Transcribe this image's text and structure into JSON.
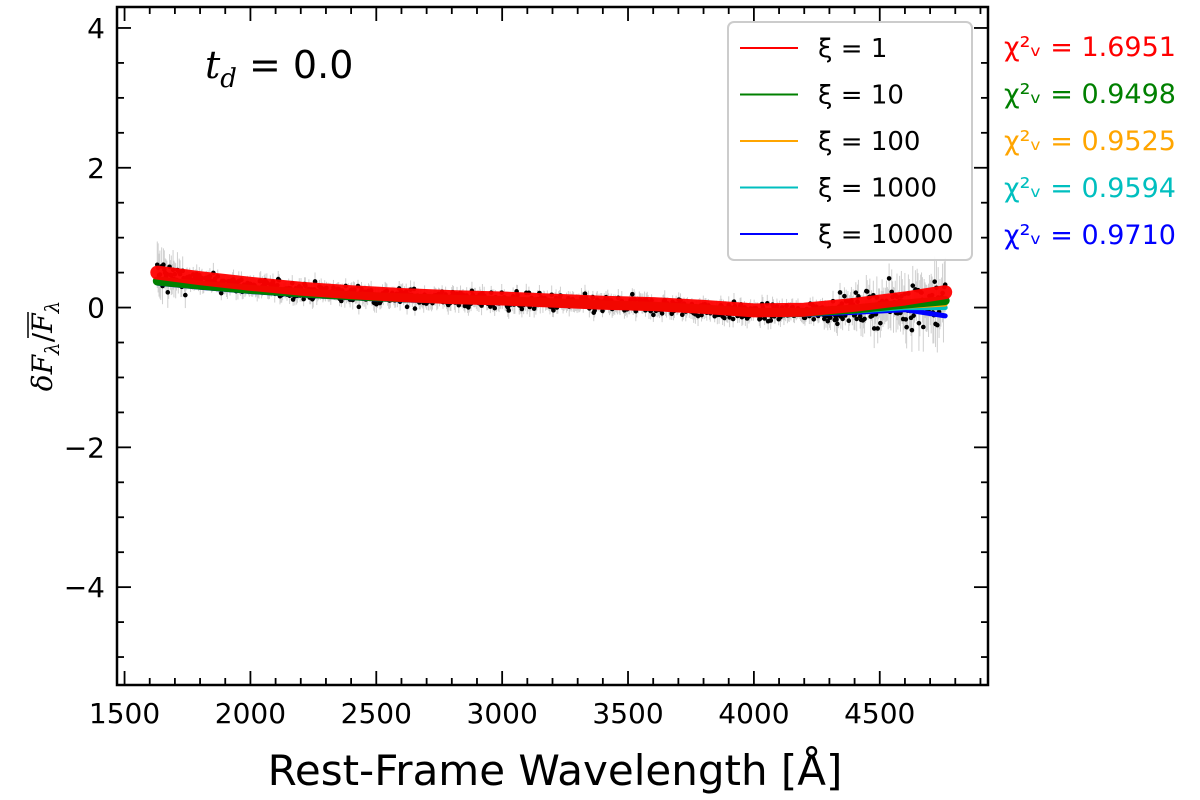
{
  "chart_data": {
    "type": "line",
    "xlabel": "Rest-Frame Wavelength [Å]",
    "ylabel": "δF_λ / F̄_λ",
    "xlim": [
      1470,
      4930
    ],
    "ylim": [
      -5.4,
      4.3
    ],
    "xticks": [
      1500,
      2000,
      2500,
      3000,
      3500,
      4000,
      4500
    ],
    "xtick_labels": [
      "1500",
      "2000",
      "2500",
      "3000",
      "3500",
      "4000",
      "4500"
    ],
    "yticks": [
      4,
      2,
      0,
      -2,
      -4
    ],
    "ytick_labels": [
      "4",
      "2",
      "0",
      "−2",
      "−4"
    ],
    "annotation": {
      "symbol": "t",
      "subscript": "d",
      "text": " = 0.0"
    },
    "legend_position": "top-right",
    "x": [
      1630,
      1800,
      2000,
      2200,
      2400,
      2600,
      2800,
      3000,
      3200,
      3400,
      3600,
      3800,
      4000,
      4200,
      4400,
      4600,
      4760
    ],
    "observed_points": [
      0.45,
      0.38,
      0.3,
      0.24,
      0.19,
      0.15,
      0.12,
      0.1,
      0.07,
      0.04,
      0.02,
      -0.02,
      -0.08,
      -0.07,
      -0.02,
      0.05,
      0.1
    ],
    "series": [
      {
        "name": "ξ = 1",
        "chi_label": "χ²ᵥ = 1.6951",
        "color": "#ff0000",
        "values": [
          0.5,
          0.42,
          0.34,
          0.27,
          0.22,
          0.18,
          0.15,
          0.13,
          0.1,
          0.07,
          0.05,
          0.01,
          -0.04,
          -0.03,
          0.04,
          0.13,
          0.22
        ]
      },
      {
        "name": "ξ = 10",
        "chi_label": "χ²ᵥ = 0.9498",
        "color": "#008000",
        "values": [
          0.38,
          0.32,
          0.26,
          0.21,
          0.17,
          0.14,
          0.12,
          0.1,
          0.07,
          0.04,
          0.02,
          -0.02,
          -0.07,
          -0.07,
          -0.02,
          0.05,
          0.1
        ]
      },
      {
        "name": "ξ = 100",
        "chi_label": "χ²ᵥ = 0.9525",
        "color": "#ffa500",
        "values": [
          0.37,
          0.31,
          0.25,
          0.2,
          0.16,
          0.13,
          0.11,
          0.09,
          0.06,
          0.03,
          0.01,
          -0.03,
          -0.08,
          -0.08,
          -0.04,
          0.02,
          0.05
        ]
      },
      {
        "name": "ξ = 1000",
        "chi_label": "χ²ᵥ = 0.9594",
        "color": "#00bfbf",
        "values": [
          0.36,
          0.3,
          0.24,
          0.19,
          0.15,
          0.12,
          0.1,
          0.08,
          0.05,
          0.02,
          0.0,
          -0.04,
          -0.09,
          -0.09,
          -0.05,
          0.0,
          0.0
        ]
      },
      {
        "name": "ξ = 10000",
        "chi_label": "χ²ᵥ = 0.9710",
        "color": "#0000ff",
        "values": [
          0.35,
          0.29,
          0.23,
          0.18,
          0.14,
          0.11,
          0.09,
          0.07,
          0.04,
          0.01,
          -0.01,
          -0.05,
          -0.1,
          -0.1,
          -0.07,
          -0.03,
          -0.12
        ]
      }
    ]
  }
}
